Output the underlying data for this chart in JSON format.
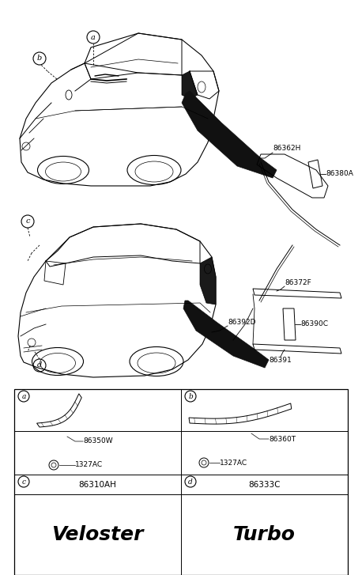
{
  "bg_color": "#ffffff",
  "line_color": "#000000",
  "fig_width": 4.58,
  "fig_height": 7.27,
  "dpi": 100,
  "top_parts": [
    "86362H",
    "86380A"
  ],
  "top_callouts": [
    "a",
    "b"
  ],
  "bottom_parts": [
    "86392D",
    "86372F",
    "86390C",
    "86391"
  ],
  "bottom_callouts": [
    "c",
    "d"
  ],
  "table": {
    "cell_a_parts": [
      "86350W",
      "1327AC"
    ],
    "cell_b_parts": [
      "86360T",
      "1327AC"
    ],
    "cell_c_part": "86310AH",
    "cell_d_part": "86333C",
    "veloster_text": "Veloster",
    "turbo_text": "Turbo"
  }
}
